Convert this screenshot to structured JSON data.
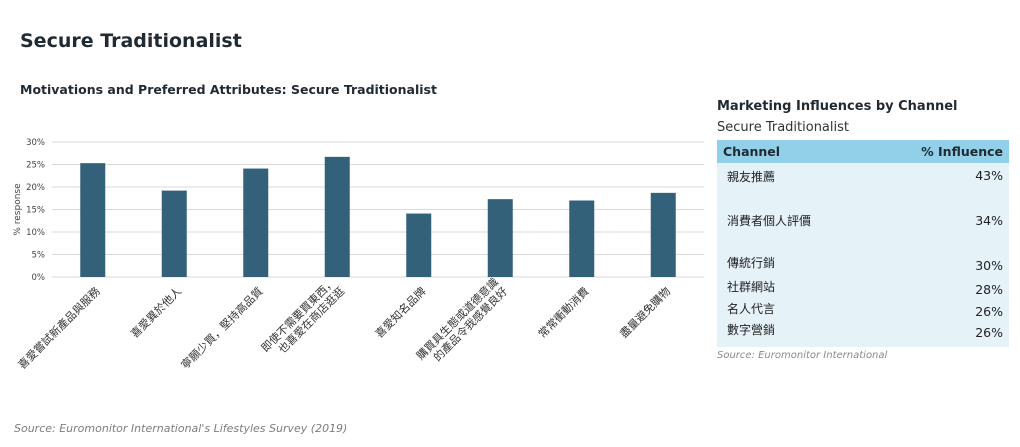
{
  "page_title": "Secure Traditionalist",
  "chart_data": {
    "type": "bar",
    "title": "Motivations and Preferred Attributes: Secure Traditionalist",
    "ylabel": "% response",
    "xlabel": "",
    "ylim": [
      0,
      30
    ],
    "yticks": [
      "0%",
      "5%",
      "10%",
      "15%",
      "20%",
      "25%",
      "30%"
    ],
    "grid": true,
    "bar_color": "#336179",
    "categories": [
      "喜愛嘗試新產品與服務",
      "喜愛異於他人",
      "寧願少買，堅持高品質",
      "即使不需要買東西，也喜愛在商店逛逛",
      "喜愛知名品牌",
      "購買具生態或道德意識的產品令我感覺良好",
      "常常衝動消費",
      "盡量避免購物"
    ],
    "category_lines": [
      [
        "喜愛嘗試新產品與服務"
      ],
      [
        "喜愛異於他人"
      ],
      [
        "寧願少買，堅持高品質"
      ],
      [
        "即使不需要買東西，",
        "也喜愛在商店逛逛"
      ],
      [
        "喜愛知名品牌"
      ],
      [
        "購買具生態或道德意識",
        "的產品令我感覺良好"
      ],
      [
        "常常衝動消費"
      ],
      [
        "盡量避免購物"
      ]
    ],
    "values": [
      25.3,
      19.2,
      24.1,
      26.7,
      14.1,
      17.3,
      17.0,
      18.7
    ],
    "source": "Source: Euromonitor International's Lifestyles Survey (2019)"
  },
  "influences": {
    "title": "Marketing Influences by Channel",
    "subtitle": "Secure Traditionalist",
    "col_channel": "Channel",
    "col_influence": "% Influence",
    "header_color": "#92cfe9",
    "body_color": "#e5f2f8",
    "rows": [
      {
        "channel": "親友推薦",
        "value": "43%"
      },
      {
        "channel": "消費者個人評價",
        "value": "34%"
      },
      {
        "channel": "傳統行銷",
        "value": "30%"
      },
      {
        "channel": "社群網站",
        "value": "28%"
      },
      {
        "channel": "名人代言",
        "value": "26%"
      },
      {
        "channel": "數字營銷",
        "value": "26%"
      }
    ],
    "source": "Source: Euromonitor International"
  }
}
